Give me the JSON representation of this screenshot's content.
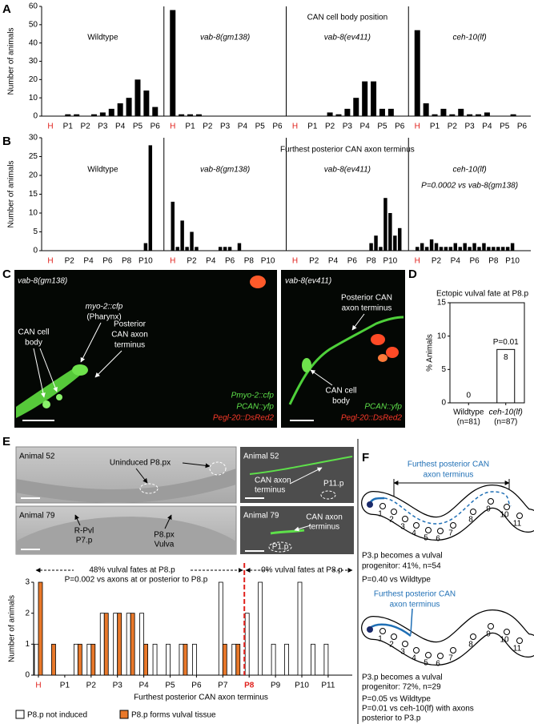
{
  "chart_data": [
    {
      "type": "facet-bar",
      "panel": "A",
      "title": "CAN cell body position",
      "y_label": "Number of animals",
      "ylim": [
        0,
        60
      ],
      "yticks": [
        0,
        10,
        20,
        30,
        40,
        50,
        60
      ],
      "categories": [
        "H",
        null,
        "P1",
        null,
        "P2",
        null,
        "P3",
        null,
        "P4",
        null,
        "P5",
        null,
        "P6"
      ],
      "series": [
        {
          "name": "Wildtype",
          "color": "#000000",
          "values": [
            0,
            0,
            1,
            1,
            0,
            1,
            2,
            4,
            7,
            10,
            20,
            14,
            5
          ]
        },
        {
          "name": "vab-8(gm138)",
          "color": "#000000",
          "values": [
            58,
            1,
            1,
            1,
            0,
            0,
            0,
            0,
            0,
            0,
            0,
            0,
            0
          ]
        },
        {
          "name": "vab-8(ev411)",
          "color": "#000000",
          "values": [
            0,
            0,
            0,
            0,
            2,
            1,
            4,
            10,
            19,
            19,
            4,
            4,
            0
          ]
        },
        {
          "name": "ceh-10(lf)",
          "color": "#000000",
          "values": [
            47,
            7,
            1,
            4,
            1,
            4,
            1,
            1,
            2,
            0,
            0,
            1,
            0
          ]
        }
      ]
    },
    {
      "type": "facet-bar",
      "panel": "B",
      "title": "Furthest posterior CAN axon terminus",
      "y_label": "Number of animals",
      "ylim": [
        0,
        30
      ],
      "yticks": [
        0,
        5,
        10,
        15,
        20,
        25,
        30
      ],
      "categories": [
        "H",
        null,
        null,
        null,
        "P2",
        null,
        null,
        null,
        "P4",
        null,
        null,
        null,
        "P6",
        null,
        null,
        null,
        "P8",
        null,
        null,
        null,
        "P10",
        null,
        null
      ],
      "series": [
        {
          "name": "Wildtype",
          "color": "#000000",
          "values": [
            0,
            0,
            0,
            0,
            0,
            0,
            0,
            0,
            0,
            0,
            0,
            0,
            0,
            0,
            0,
            0,
            0,
            0,
            0,
            0,
            2,
            28,
            0
          ]
        },
        {
          "name": "vab-8(gm138)",
          "color": "#000000",
          "values": [
            13,
            1,
            8,
            1,
            5,
            1,
            0,
            0,
            0,
            0,
            1,
            1,
            1,
            0,
            2,
            0,
            0,
            0,
            0,
            0,
            0,
            0,
            0
          ]
        },
        {
          "name": "vab-8(ev411)",
          "color": "#000000",
          "values": [
            0,
            0,
            0,
            0,
            0,
            0,
            0,
            0,
            0,
            0,
            0,
            0,
            0,
            0,
            0,
            0,
            2,
            4,
            1,
            14,
            10,
            4,
            6
          ]
        },
        {
          "name": "ceh-10(lf)",
          "color": "#000000",
          "values": [
            1,
            2,
            1,
            3,
            2,
            1,
            1,
            1,
            2,
            1,
            2,
            1,
            2,
            1,
            2,
            1,
            1,
            1,
            1,
            1,
            2,
            0,
            0
          ]
        }
      ],
      "annotations": [
        "P=0.0002 vs vab-8(gm138)"
      ]
    },
    {
      "type": "bar",
      "panel": "D",
      "title": "Ectopic vulval fate at P8.p",
      "y_label": "% Animals",
      "ylim": [
        0,
        15
      ],
      "yticks": [
        0,
        5,
        10,
        15
      ],
      "categories": [
        "Wildtype",
        "ceh-10(lf)"
      ],
      "category_notes": [
        "(n=81)",
        "(n=87)"
      ],
      "values": [
        0,
        8
      ],
      "color": "#ffffff",
      "annotations": [
        "P=0.01"
      ]
    },
    {
      "type": "grouped-bar",
      "panel": "E",
      "x_label": "Furthest posterior CAN axon terminus",
      "y_label": "Number of animals",
      "ylim": [
        0,
        3
      ],
      "yticks": [
        0,
        1,
        2,
        3
      ],
      "categories": [
        "H",
        null,
        "P1",
        null,
        "P2",
        null,
        "P3",
        null,
        "P4",
        null,
        "P5",
        null,
        "P6",
        null,
        "P7",
        null,
        "P8",
        null,
        "P9",
        null,
        "P10",
        null,
        "P11"
      ],
      "series": [
        {
          "name": "P8.p not induced",
          "color": "#ffffff",
          "values": [
            1,
            0,
            0,
            1,
            1,
            2,
            2,
            2,
            2,
            1,
            1,
            1,
            1,
            0,
            3,
            1,
            2,
            3,
            1,
            1,
            3,
            1,
            1
          ]
        },
        {
          "name": "P8.p forms vulval tissue",
          "color": "#e8782a",
          "values": [
            3,
            1,
            0,
            1,
            1,
            2,
            2,
            2,
            1,
            0,
            0,
            1,
            0,
            0,
            1,
            1,
            0,
            0,
            0,
            0,
            0,
            0,
            0
          ]
        }
      ],
      "annotations": [
        "48% vulval fates at P8.p",
        "P=0.002 vs axons at or posterior to P8.p",
        "0% vulval fates at P8.p"
      ]
    }
  ],
  "panel_c": {
    "label": "C",
    "left": {
      "title": "vab-8(gm138)",
      "marker": [
        "myo-2::cfp",
        "(Pharynx)"
      ],
      "cell_body": [
        "CAN cell",
        "body"
      ],
      "axon": [
        "Posterior",
        "CAN axon",
        "terminus"
      ],
      "legend": [
        "Pmyo-2::cfp",
        "PCAN::yfp",
        "Pegl-20::DsRed2"
      ]
    },
    "right": {
      "title": "vab-8(ev411)",
      "axon": [
        "Posterior CAN",
        "axon terminus"
      ],
      "cell_body": [
        "CAN cell",
        "body"
      ],
      "legend": [
        "PCAN::yfp",
        "Pegl-20::DsRed2"
      ]
    }
  },
  "panel_e_images": [
    {
      "title": "Animal 52",
      "labels": [
        "Uninduced P8.px"
      ]
    },
    {
      "title": "Animal 52",
      "labels": [
        "CAN axon",
        "terminus",
        "P11.p"
      ]
    },
    {
      "title": "Animal 79",
      "labels": [
        "R-Pvl",
        "P7.p",
        "P8.px",
        "Vulva"
      ]
    },
    {
      "title": "Animal 79",
      "labels": [
        "CAN axon",
        "terminus",
        "P1.p"
      ]
    }
  ],
  "panel_f": {
    "label": "F",
    "cells": [
      "1",
      "2",
      "3",
      "4",
      "5",
      "6",
      "7",
      "8",
      "9",
      "10",
      "11"
    ],
    "diagrams": [
      {
        "title": [
          "Furthest posterior CAN",
          "axon terminus"
        ],
        "text": [
          "P3.p becomes a vulval",
          "progenitor: 41%, n=54",
          "P=0.40 vs Wildtype"
        ]
      },
      {
        "title": [
          "Furthest posterior CAN",
          "axon terminus"
        ],
        "text": [
          "P3.p becomes a vulval",
          "progenitor: 72%, n=29",
          "P=0.05 vs Wildtype",
          "P=0.01 vs ceh-10(lf) with axons",
          "posterior to P3.p"
        ]
      }
    ]
  }
}
